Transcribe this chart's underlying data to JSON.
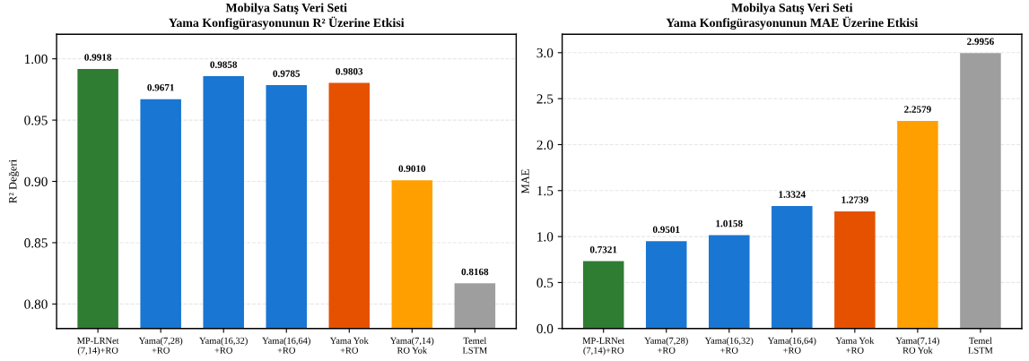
{
  "chart_data": [
    {
      "type": "bar",
      "title": "Mobilya Satış Veri Seti\nYama Konfigürasyonunun R² Üzerine Etkisi",
      "ylabel": "R² Değeri",
      "categories": [
        "MP-LRNet\n(7,14)+RO",
        "Yama(7,28)\n+RO",
        "Yama(16,32)\n+RO",
        "Yama(16,64)\n+RO",
        "Yama Yok\n+RO",
        "Yama(7,14)\nRO Yok",
        "Temel\nLSTM"
      ],
      "values": [
        0.9918,
        0.9671,
        0.9858,
        0.9785,
        0.9803,
        0.901,
        0.8168
      ],
      "value_labels": [
        "0.9918",
        "0.9671",
        "0.9858",
        "0.9785",
        "0.9803",
        "0.9010",
        "0.8168"
      ],
      "colors": [
        "#2e7d32",
        "#1976d2",
        "#1976d2",
        "#1976d2",
        "#e65100",
        "#ffa000",
        "#9e9e9e"
      ],
      "ylim": [
        0.78,
        1.02
      ],
      "yticks": [
        {
          "value": 0.8,
          "label": "0.80"
        },
        {
          "value": 0.85,
          "label": "0.85"
        },
        {
          "value": 0.9,
          "label": "0.90"
        },
        {
          "value": 0.95,
          "label": "0.95"
        },
        {
          "value": 1.0,
          "label": "1.00"
        }
      ],
      "grid": "y"
    },
    {
      "type": "bar",
      "title": "Mobilya Satış Veri Seti\nYama Konfigürasyonunun MAE Üzerine Etkisi",
      "ylabel": "MAE",
      "categories": [
        "MP-LRNet\n(7,14)+RO",
        "Yama(7,28)\n+RO",
        "Yama(16,32)\n+RO",
        "Yama(16,64)\n+RO",
        "Yama Yok\n+RO",
        "Yama(7,14)\nRO Yok",
        "Temel\nLSTM"
      ],
      "values": [
        0.7321,
        0.9501,
        1.0158,
        1.3324,
        1.2739,
        2.2579,
        2.9956
      ],
      "value_labels": [
        "0.7321",
        "0.9501",
        "1.0158",
        "1.3324",
        "1.2739",
        "2.2579",
        "2.9956"
      ],
      "colors": [
        "#2e7d32",
        "#1976d2",
        "#1976d2",
        "#1976d2",
        "#e65100",
        "#ffa000",
        "#9e9e9e"
      ],
      "ylim": [
        0,
        3.2
      ],
      "yticks": [
        {
          "value": 0,
          "label": "0.0"
        },
        {
          "value": 0.5,
          "label": "0.5"
        },
        {
          "value": 1.0,
          "label": "1.0"
        },
        {
          "value": 1.5,
          "label": "1.5"
        },
        {
          "value": 2.0,
          "label": "2.0"
        },
        {
          "value": 2.5,
          "label": "2.5"
        },
        {
          "value": 3.0,
          "label": "3.0"
        }
      ],
      "grid": "y"
    }
  ]
}
